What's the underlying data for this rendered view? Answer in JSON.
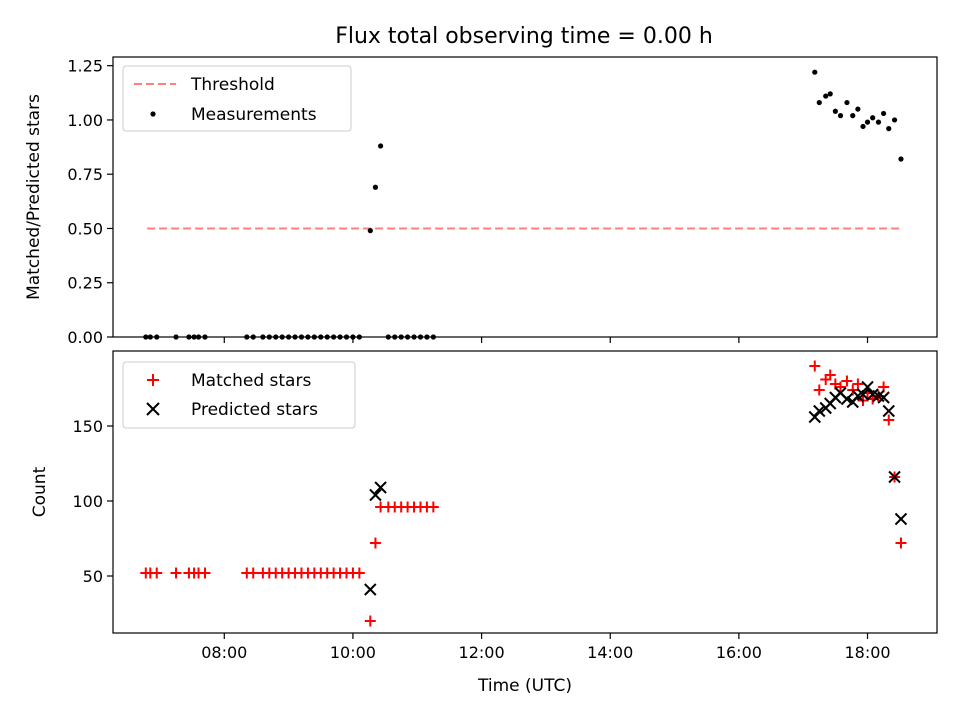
{
  "title": "Flux total observing time = 0.00 h",
  "x_axis_label": "Time (UTC)",
  "chart_data": [
    {
      "type": "scatter",
      "panel": "top",
      "ylabel": "Matched/Predicted stars",
      "xlabel": "",
      "ylim": [
        0,
        1.29
      ],
      "yticks": [
        0.0,
        0.25,
        0.5,
        0.75,
        1.0,
        1.25
      ],
      "ytick_labels": [
        "0.00",
        "0.25",
        "0.50",
        "0.75",
        "1.00",
        "1.25"
      ],
      "legend_position": "top-left",
      "threshold": {
        "name": "Threshold",
        "value": 0.5,
        "x_start": 6.8,
        "x_end": 18.55,
        "color": "#ff7f7f"
      },
      "series": [
        {
          "name": "Measurements",
          "color": "#000000",
          "marker": "dot",
          "x": [
            6.78,
            6.85,
            6.95,
            7.25,
            7.45,
            7.53,
            7.6,
            7.7,
            8.35,
            8.45,
            8.6,
            8.7,
            8.8,
            8.9,
            9.0,
            9.1,
            9.2,
            9.3,
            9.4,
            9.5,
            9.6,
            9.7,
            9.8,
            9.9,
            10.0,
            10.1,
            10.27,
            10.35,
            10.43,
            10.55,
            10.65,
            10.75,
            10.85,
            10.95,
            11.05,
            11.15,
            11.25,
            17.18,
            17.25,
            17.35,
            17.42,
            17.5,
            17.58,
            17.68,
            17.77,
            17.85,
            17.93,
            18.0,
            18.08,
            18.17,
            18.25,
            18.33,
            18.42,
            18.52
          ],
          "y": [
            0,
            0,
            0,
            0,
            0,
            0,
            0,
            0,
            0,
            0,
            0,
            0,
            0,
            0,
            0,
            0,
            0,
            0,
            0,
            0,
            0,
            0,
            0,
            0,
            0,
            0,
            0.49,
            0.69,
            0.88,
            0,
            0,
            0,
            0,
            0,
            0,
            0,
            0,
            1.22,
            1.08,
            1.11,
            1.12,
            1.04,
            1.02,
            1.08,
            1.02,
            1.05,
            0.97,
            0.99,
            1.01,
            0.99,
            1.03,
            0.96,
            1.0,
            0.82
          ]
        }
      ]
    },
    {
      "type": "scatter",
      "panel": "bottom",
      "ylabel": "Count",
      "xlabel": "Time (UTC)",
      "xlim": [
        6.27,
        19.08
      ],
      "xticks": [
        8,
        10,
        12,
        14,
        16,
        18
      ],
      "xtick_labels": [
        "08:00",
        "10:00",
        "12:00",
        "14:00",
        "16:00",
        "18:00"
      ],
      "ylim": [
        12,
        200
      ],
      "yticks": [
        50,
        100,
        150
      ],
      "ytick_labels": [
        "50",
        "100",
        "150"
      ],
      "legend_position": "top-left",
      "series": [
        {
          "name": "Matched stars",
          "color": "#ff0000",
          "marker": "plus",
          "x": [
            6.78,
            6.85,
            6.95,
            7.25,
            7.45,
            7.53,
            7.6,
            7.7,
            8.35,
            8.45,
            8.6,
            8.7,
            8.8,
            8.9,
            9.0,
            9.1,
            9.2,
            9.3,
            9.4,
            9.5,
            9.6,
            9.7,
            9.8,
            9.9,
            10.0,
            10.1,
            10.27,
            10.35,
            10.43,
            10.55,
            10.65,
            10.75,
            10.85,
            10.95,
            11.05,
            11.15,
            11.25,
            17.18,
            17.25,
            17.35,
            17.42,
            17.5,
            17.58,
            17.68,
            17.77,
            17.85,
            17.93,
            18.0,
            18.08,
            18.17,
            18.25,
            18.33,
            18.42,
            18.52
          ],
          "y": [
            52,
            52,
            52,
            52,
            52,
            52,
            52,
            52,
            52,
            52,
            52,
            52,
            52,
            52,
            52,
            52,
            52,
            52,
            52,
            52,
            52,
            52,
            52,
            52,
            52,
            52,
            20,
            72,
            96,
            96,
            96,
            96,
            96,
            96,
            96,
            96,
            96,
            190,
            174,
            181,
            184,
            178,
            176,
            180,
            174,
            178,
            167,
            172,
            168,
            170,
            176,
            154,
            116,
            72
          ]
        },
        {
          "name": "Predicted stars",
          "color": "#000000",
          "marker": "x",
          "x": [
            10.27,
            10.35,
            10.43,
            17.18,
            17.25,
            17.35,
            17.42,
            17.5,
            17.58,
            17.68,
            17.77,
            17.85,
            17.93,
            18.0,
            18.08,
            18.17,
            18.25,
            18.33,
            18.42,
            18.52
          ],
          "y": [
            41,
            104,
            109,
            156,
            160,
            162,
            165,
            169,
            172,
            168,
            166,
            170,
            171,
            176,
            171,
            170,
            169,
            160,
            116,
            88
          ]
        }
      ]
    }
  ]
}
